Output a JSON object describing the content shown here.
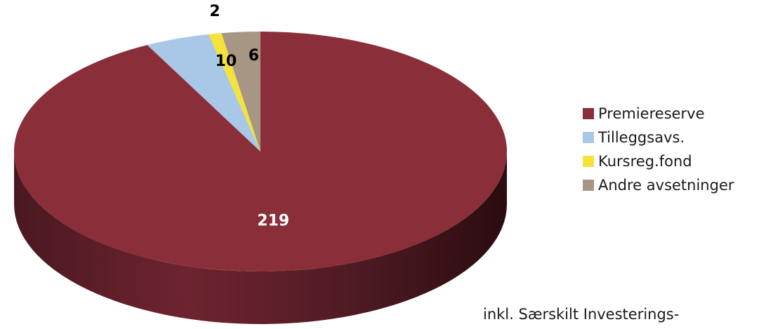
{
  "chart_data": {
    "type": "pie",
    "style": "3d",
    "slices": [
      {
        "label": "Premiereserve",
        "value": 219,
        "color": "#8a2e3a"
      },
      {
        "label": "Tilleggsavs.",
        "value": 10,
        "color": "#a9c7e6"
      },
      {
        "label": "Kursreg.fond",
        "value": 2,
        "color": "#f5e23a"
      },
      {
        "label": "Andre avsetninger",
        "value": 6,
        "color": "#a89685"
      }
    ],
    "data_labels": [
      "219",
      "10",
      "2",
      "6"
    ],
    "legend_position": "right",
    "title": ""
  },
  "footnote": "inkl. Særskilt Investerings-"
}
